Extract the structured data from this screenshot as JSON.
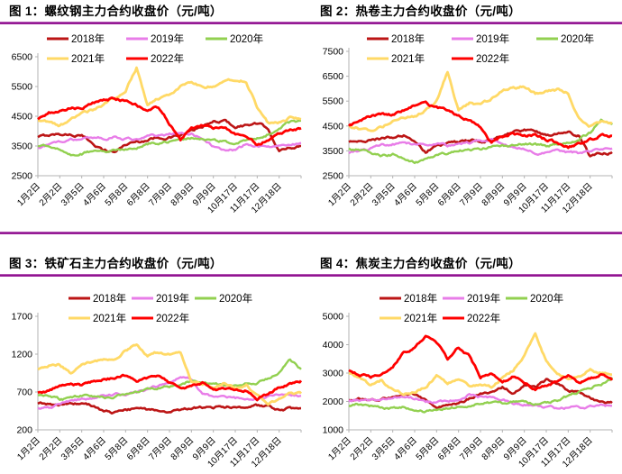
{
  "page": {
    "background": "#ffffff",
    "rule_color": "#8a0b8a",
    "axis_color": "#b3b3b3",
    "text_color": "#000000"
  },
  "chart_data": [
    {
      "type": "line",
      "title": "图 1：螺纹钢主力合约收盘价（元/吨）",
      "ylim": [
        2500,
        6500
      ],
      "yticks": [
        2500,
        3500,
        4500,
        5500,
        6500
      ],
      "grid": false,
      "legend_position": "top",
      "x_labels": [
        "1月2日",
        "2月2日",
        "3月5日",
        "4月6日",
        "5月8日",
        "6月8日",
        "7月9日",
        "8月9日",
        "9月9日",
        "10月17日",
        "11月17日",
        "12月18日"
      ],
      "series": [
        {
          "name": "2018年",
          "color": "#bc1515",
          "values": [
            3800,
            3870,
            3900,
            3880,
            3830,
            3600,
            3350,
            3300,
            3550,
            3650,
            3700,
            3800,
            3780,
            3850,
            4000,
            4150,
            4300,
            4350,
            4150,
            4200,
            4250,
            4100,
            3300,
            3450,
            3500
          ]
        },
        {
          "name": "2019年",
          "color": "#e87de8",
          "values": [
            3450,
            3550,
            3650,
            3700,
            3750,
            3800,
            3750,
            3800,
            3750,
            3700,
            3800,
            3850,
            3900,
            3950,
            3900,
            3700,
            3500,
            3400,
            3350,
            3550,
            3500,
            3450,
            3500,
            3550,
            3600
          ]
        },
        {
          "name": "2020年",
          "color": "#92d050",
          "values": [
            3500,
            3550,
            3400,
            3200,
            3250,
            3350,
            3300,
            3350,
            3400,
            3450,
            3550,
            3600,
            3650,
            3700,
            3750,
            3750,
            3700,
            3650,
            3600,
            3650,
            3750,
            3900,
            4100,
            4300,
            4350
          ]
        },
        {
          "name": "2021年",
          "color": "#ffd966",
          "values": [
            4350,
            4300,
            4200,
            4350,
            4600,
            4700,
            4900,
            5100,
            5400,
            6150,
            4900,
            5100,
            5250,
            5500,
            5650,
            5450,
            5500,
            5700,
            5750,
            5650,
            4800,
            4250,
            4300,
            4450,
            4400
          ]
        },
        {
          "name": "2022年",
          "color": "#ff0000",
          "values": [
            4400,
            4600,
            4700,
            4800,
            4750,
            4950,
            5050,
            5100,
            5000,
            4850,
            4700,
            4800,
            4250,
            3700,
            4100,
            4200,
            4100,
            4150,
            3900,
            3800,
            3550,
            3700,
            3900,
            4050,
            4100
          ]
        }
      ]
    },
    {
      "type": "line",
      "title": "图 2：热卷主力合约收盘价（元/吨）",
      "ylim": [
        2500,
        7500
      ],
      "yticks": [
        2500,
        3500,
        4500,
        5500,
        6500,
        7500
      ],
      "grid": false,
      "legend_position": "top",
      "x_labels": [
        "1月2日",
        "2月2日",
        "3月5日",
        "4月6日",
        "5月8日",
        "6月8日",
        "7月9日",
        "8月9日",
        "9月9日",
        "10月17日",
        "11月17日",
        "12月18日"
      ],
      "series": [
        {
          "name": "2018年",
          "color": "#bc1515",
          "values": [
            3850,
            3900,
            3950,
            4000,
            4050,
            4100,
            3800,
            3450,
            3700,
            3800,
            3850,
            3900,
            3900,
            3950,
            4100,
            4250,
            4300,
            4250,
            4150,
            4200,
            4250,
            4100,
            3250,
            3400,
            3450
          ]
        },
        {
          "name": "2019年",
          "color": "#e87de8",
          "values": [
            3400,
            3500,
            3600,
            3700,
            3750,
            3800,
            3750,
            3800,
            3750,
            3700,
            3750,
            3800,
            3900,
            3950,
            3850,
            3650,
            3550,
            3450,
            3400,
            3500,
            3450,
            3400,
            3450,
            3550,
            3600
          ]
        },
        {
          "name": "2020年",
          "color": "#92d050",
          "values": [
            3600,
            3550,
            3450,
            3300,
            3350,
            3250,
            3050,
            3150,
            3300,
            3400,
            3500,
            3550,
            3600,
            3650,
            3700,
            3750,
            3800,
            3750,
            3700,
            3750,
            3850,
            4000,
            4250,
            4700,
            4550
          ]
        },
        {
          "name": "2021年",
          "color": "#ffd966",
          "values": [
            4500,
            4400,
            4300,
            4450,
            4650,
            4800,
            4900,
            5100,
            5500,
            6650,
            5100,
            5400,
            5300,
            5600,
            5900,
            6050,
            6100,
            5800,
            5900,
            5950,
            5800,
            4800,
            4500,
            4650,
            4600
          ]
        },
        {
          "name": "2022年",
          "color": "#ff0000",
          "values": [
            4500,
            4700,
            4900,
            5000,
            4950,
            5100,
            5300,
            5400,
            5250,
            5100,
            4900,
            4700,
            4450,
            3850,
            4050,
            4200,
            4100,
            4150,
            3950,
            3850,
            3650,
            3800,
            3950,
            4100,
            4100
          ]
        }
      ]
    },
    {
      "type": "line",
      "title": "图 3：铁矿石主力合约收盘价（元/吨）",
      "ylim": [
        200,
        1700
      ],
      "yticks": [
        200,
        700,
        1200,
        1700
      ],
      "grid": false,
      "legend_position": "top",
      "x_labels": [
        "1月2日",
        "2月2日",
        "3月5日",
        "4月6日",
        "5月8日",
        "6月8日",
        "7月9日",
        "8月9日",
        "9月9日",
        "10月17日",
        "11月17日",
        "12月18日"
      ],
      "series": [
        {
          "name": "2018年",
          "color": "#bc1515",
          "values": [
            545,
            540,
            530,
            545,
            550,
            520,
            440,
            430,
            460,
            470,
            460,
            450,
            450,
            460,
            490,
            500,
            500,
            495,
            505,
            510,
            520,
            500,
            455,
            480,
            485
          ]
        },
        {
          "name": "2019年",
          "color": "#e87de8",
          "values": [
            490,
            500,
            540,
            580,
            610,
            620,
            640,
            660,
            680,
            700,
            720,
            780,
            830,
            900,
            870,
            680,
            640,
            660,
            620,
            610,
            620,
            640,
            660,
            660,
            650
          ]
        },
        {
          "name": "2020年",
          "color": "#92d050",
          "values": [
            660,
            650,
            600,
            620,
            650,
            640,
            620,
            640,
            680,
            700,
            730,
            760,
            780,
            810,
            850,
            840,
            820,
            790,
            790,
            810,
            830,
            880,
            950,
            1120,
            1000
          ]
        },
        {
          "name": "2021年",
          "color": "#ffd966",
          "values": [
            1000,
            1050,
            1060,
            950,
            1080,
            1100,
            1120,
            1150,
            1250,
            1330,
            1180,
            1230,
            1200,
            1230,
            850,
            800,
            780,
            820,
            750,
            800,
            650,
            550,
            600,
            690,
            680
          ]
        },
        {
          "name": "2022年",
          "color": "#ff0000",
          "values": [
            690,
            720,
            790,
            800,
            790,
            830,
            870,
            880,
            920,
            850,
            870,
            900,
            820,
            750,
            780,
            820,
            720,
            730,
            740,
            730,
            620,
            680,
            760,
            810,
            850
          ]
        }
      ]
    },
    {
      "type": "line",
      "title": "图 4：焦炭主力合约收盘价（元/吨）",
      "ylim": [
        1000,
        5000
      ],
      "yticks": [
        1000,
        2000,
        3000,
        4000,
        5000
      ],
      "grid": false,
      "legend_position": "top",
      "x_labels": [
        "1月2日",
        "2月2日",
        "3月5日",
        "4月6日",
        "5月8日",
        "6月8日",
        "7月9日",
        "8月9日",
        "9月9日",
        "10月17日",
        "11月17日",
        "12月18日"
      ],
      "series": [
        {
          "name": "2018年",
          "color": "#bc1515",
          "values": [
            2050,
            2100,
            2050,
            2100,
            2150,
            2300,
            2250,
            2050,
            1800,
            1850,
            1950,
            2100,
            2250,
            2350,
            2500,
            2300,
            2600,
            2500,
            2750,
            2600,
            2400,
            2300,
            2100,
            2000,
            1950
          ]
        },
        {
          "name": "2019年",
          "color": "#e87de8",
          "values": [
            2000,
            2050,
            2050,
            2100,
            2150,
            2150,
            2100,
            2000,
            1950,
            2000,
            2100,
            2250,
            2150,
            2100,
            2050,
            1950,
            1900,
            1850,
            1800,
            1750,
            1780,
            1800,
            1820,
            1850,
            1850
          ]
        },
        {
          "name": "2020年",
          "color": "#92d050",
          "values": [
            1850,
            1900,
            1850,
            1800,
            1750,
            1800,
            1700,
            1650,
            1700,
            1750,
            1800,
            1850,
            1900,
            1950,
            1950,
            2000,
            1950,
            1900,
            1950,
            2050,
            2200,
            2350,
            2450,
            2600,
            2850
          ]
        },
        {
          "name": "2021年",
          "color": "#ffd966",
          "values": [
            3000,
            2850,
            2550,
            2750,
            2400,
            2250,
            2350,
            2500,
            2900,
            2600,
            2750,
            2550,
            2600,
            2500,
            2800,
            3100,
            3600,
            4400,
            3400,
            2950,
            2800,
            2900,
            3100,
            3000,
            2950
          ]
        },
        {
          "name": "2022年",
          "color": "#ff0000",
          "values": [
            3100,
            2950,
            2850,
            3000,
            3250,
            3700,
            3900,
            4300,
            4050,
            3500,
            3900,
            3600,
            2850,
            3000,
            2650,
            2900,
            2700,
            2450,
            2550,
            2700,
            2900,
            2650,
            2800,
            2950,
            2750
          ]
        }
      ]
    }
  ]
}
